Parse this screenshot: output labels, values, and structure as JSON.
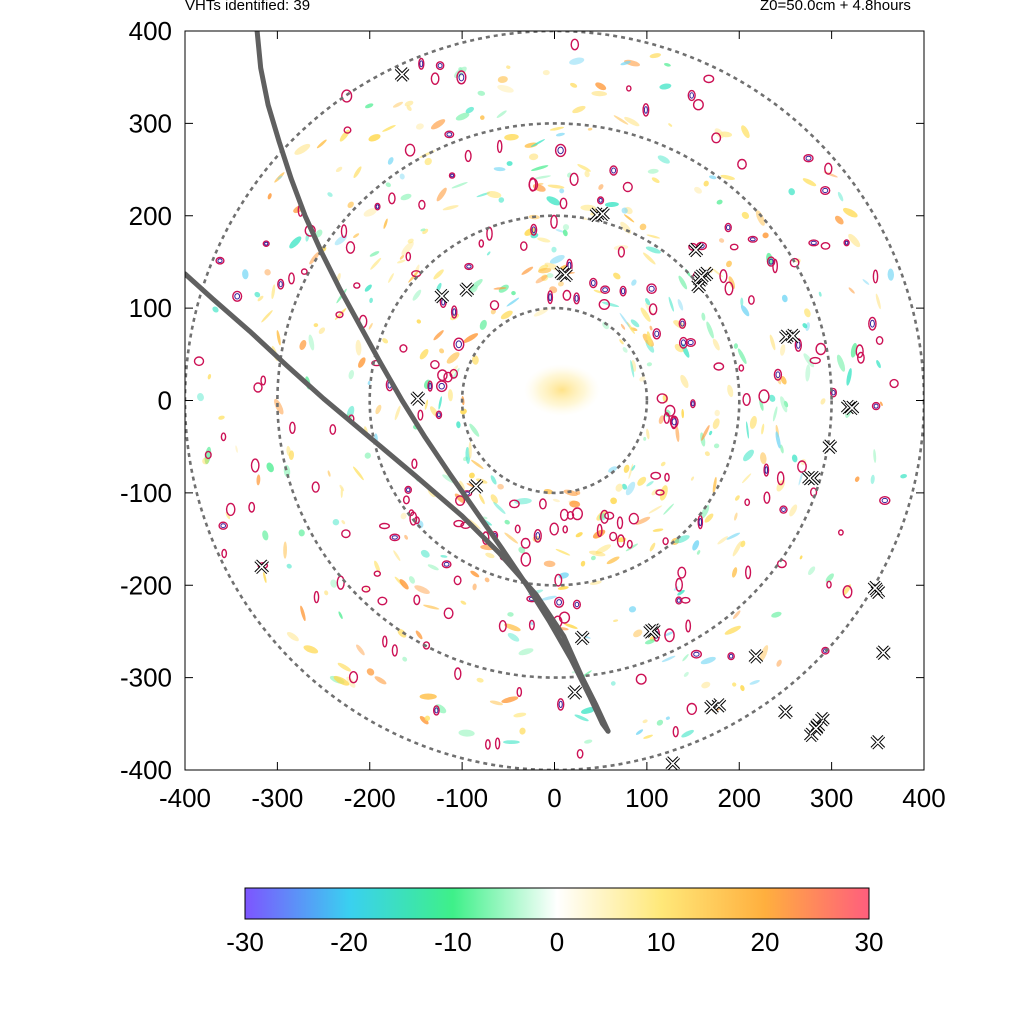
{
  "header": {
    "count_label": "VHTs identified: 39",
    "time_label": "Z0=50.0cm  + 4.8hours"
  },
  "chart_data": {
    "type": "heatmap",
    "title": "",
    "xlabel": "",
    "ylabel": "",
    "xlim": [
      -400,
      400
    ],
    "ylim": [
      -400,
      400
    ],
    "x_ticks": [
      -400,
      -300,
      -200,
      -100,
      0,
      100,
      200,
      300,
      400
    ],
    "y_ticks": [
      -400,
      -300,
      -200,
      -100,
      0,
      100,
      200,
      300,
      400
    ],
    "x_tick_labels": [
      "-400",
      "-300",
      "-200",
      "-100",
      "0",
      "100",
      "200",
      "300",
      "400"
    ],
    "y_tick_labels": [
      "-400",
      "-300",
      "-200",
      "-100",
      "0",
      "100",
      "200",
      "300",
      "400"
    ],
    "grid": false,
    "range_rings": {
      "center": [
        0,
        0
      ],
      "radii": [
        100,
        200,
        300,
        400
      ],
      "style": "dotted",
      "color": "#707070"
    },
    "tracks": [
      {
        "color": "#606060",
        "points": [
          [
            -322,
            400
          ],
          [
            -318,
            360
          ],
          [
            -310,
            320
          ],
          [
            -298,
            280
          ],
          [
            -285,
            240
          ],
          [
            -270,
            200
          ],
          [
            -252,
            160
          ],
          [
            -232,
            120
          ],
          [
            -210,
            80
          ],
          [
            -188,
            40
          ],
          [
            -165,
            0
          ],
          [
            -140,
            -40
          ],
          [
            -113,
            -80
          ],
          [
            -85,
            -120
          ],
          [
            -57,
            -160
          ],
          [
            -30,
            -200
          ],
          [
            -5,
            -240
          ],
          [
            18,
            -280
          ],
          [
            38,
            -320
          ],
          [
            52,
            -350
          ],
          [
            58,
            -358
          ]
        ]
      },
      {
        "color": "#606060",
        "points": [
          [
            -400,
            137
          ],
          [
            -370,
            110
          ],
          [
            -330,
            75
          ],
          [
            -290,
            38
          ],
          [
            -250,
            2
          ],
          [
            -200,
            -40
          ],
          [
            -150,
            -82
          ],
          [
            -100,
            -125
          ],
          [
            -60,
            -165
          ],
          [
            -20,
            -210
          ],
          [
            10,
            -255
          ],
          [
            30,
            -300
          ],
          [
            45,
            -330
          ],
          [
            58,
            -358
          ]
        ]
      }
    ],
    "vhts": [
      [
        -165,
        353
      ],
      [
        -95,
        120
      ],
      [
        -122,
        113
      ],
      [
        8,
        138
      ],
      [
        46,
        201
      ],
      [
        52,
        202
      ],
      [
        153,
        163
      ],
      [
        164,
        137
      ],
      [
        158,
        131
      ],
      [
        156,
        124
      ],
      [
        251,
        69
      ],
      [
        258,
        70
      ],
      [
        318,
        -7
      ],
      [
        298,
        -50
      ],
      [
        280,
        -84
      ],
      [
        -148,
        2
      ],
      [
        -85,
        -93
      ],
      [
        -317,
        -180
      ],
      [
        350,
        -207
      ],
      [
        356,
        -273
      ],
      [
        350,
        -370
      ],
      [
        30,
        -257
      ],
      [
        107,
        -249
      ],
      [
        218,
        -277
      ],
      [
        178,
        -330
      ],
      [
        250,
        -337
      ],
      [
        290,
        -345
      ],
      [
        285,
        -352
      ],
      [
        278,
        -362
      ],
      [
        128,
        -393
      ],
      [
        22,
        -316
      ],
      [
        322,
        -8
      ],
      [
        276,
        -84
      ],
      [
        159,
        134
      ],
      [
        283,
        -355
      ],
      [
        347,
        -203
      ],
      [
        170,
        -332
      ],
      [
        104,
        -250
      ],
      [
        12,
        136
      ]
    ],
    "colorbar": {
      "min": -30,
      "max": 30,
      "ticks": [
        -30,
        -20,
        -10,
        0,
        10,
        20,
        30
      ],
      "tick_labels": [
        "-30",
        "-20",
        "-10",
        "0",
        "10",
        "20",
        "30"
      ],
      "colors": [
        "#7d55ff",
        "#3ad0f0",
        "#3ef089",
        "#ffffff",
        "#ffe879",
        "#ffaf3e",
        "#ff5e7d"
      ]
    },
    "contour_color": "#cc1155",
    "contour_inner_color": "#3a1f9a"
  }
}
